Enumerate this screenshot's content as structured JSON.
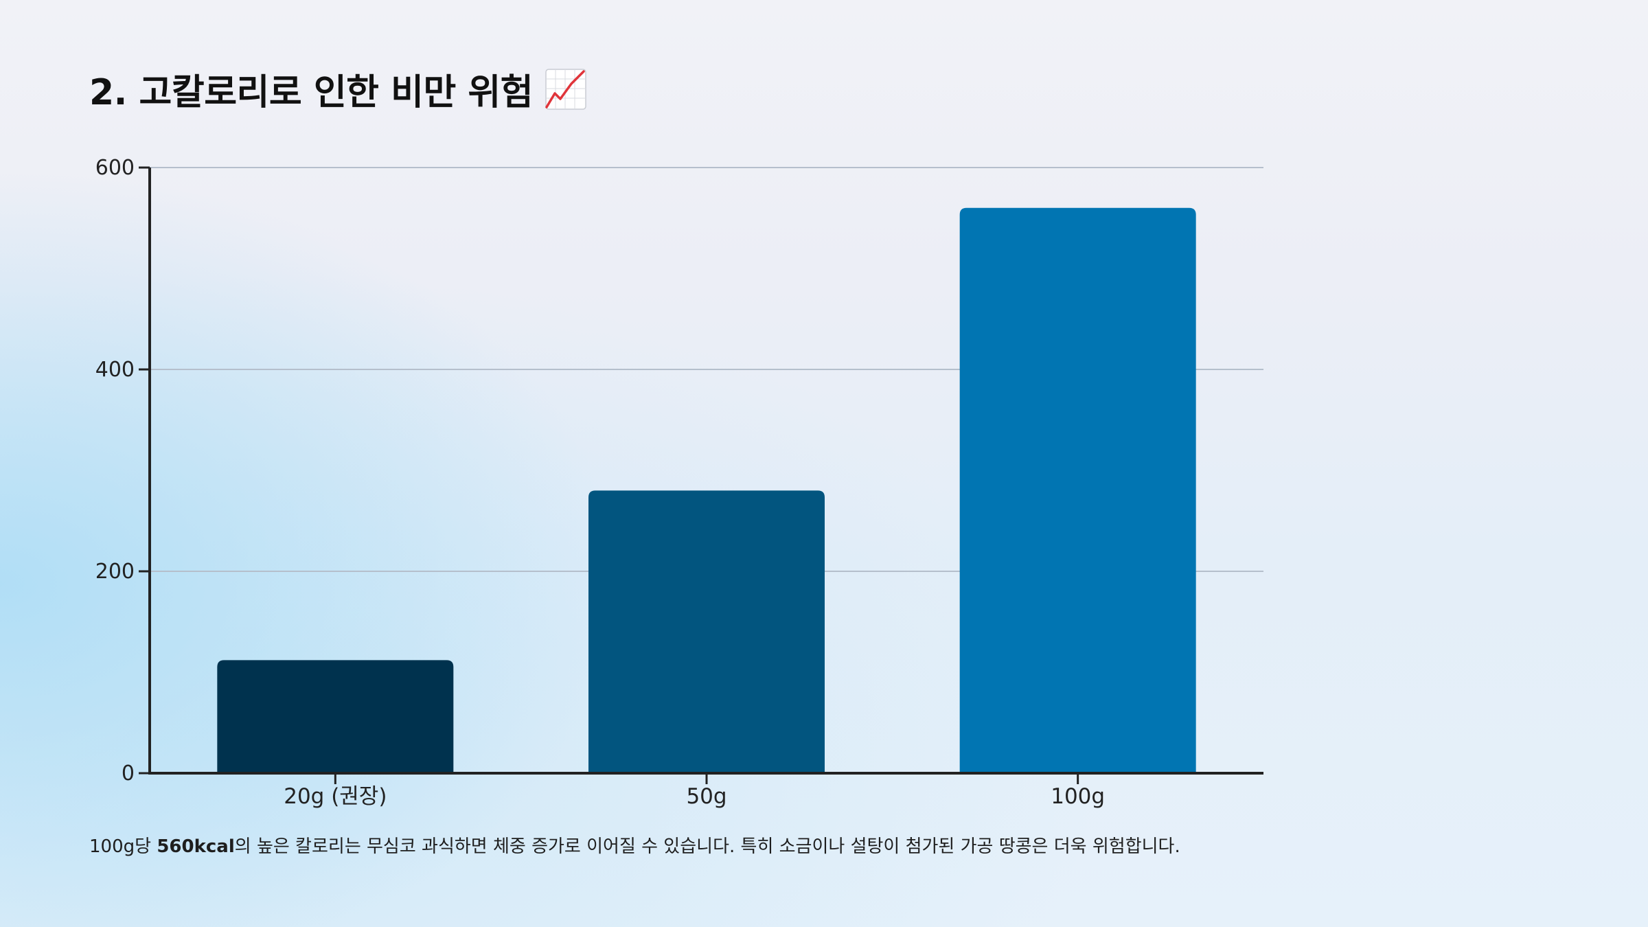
{
  "page": {
    "title": "2. 고칼로리로 인한 비만 위험",
    "title_icon": "chart-increasing-icon",
    "caption_prefix": "100g당 ",
    "caption_bold": "560kcal",
    "caption_suffix": "의 높은 칼로리는 무심코 과식하면 체중 증가로 이어질 수 있습니다. 특히 소금이나 설탕이 첨가된 가공 땅콩은 더욱 위험합니다."
  },
  "chart_data": {
    "type": "bar",
    "categories": [
      "20g (권장)",
      "50g",
      "100g"
    ],
    "values": [
      112,
      280,
      560
    ],
    "yticks": [
      0,
      200,
      400,
      600
    ],
    "ylim": [
      0,
      600
    ],
    "grid": true,
    "colors": [
      "#00324e",
      "#02557f",
      "#0175b2"
    ],
    "axis_color": "#222222",
    "grid_color": "#b5bfcc"
  }
}
